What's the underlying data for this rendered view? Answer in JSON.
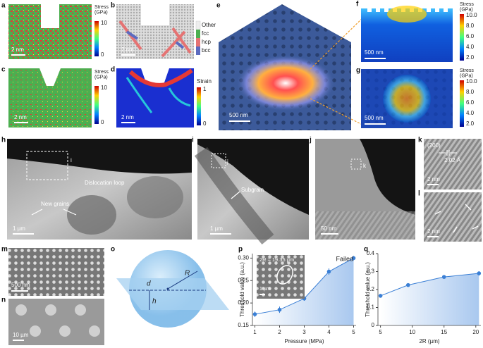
{
  "panels": {
    "a": {
      "letter": "a",
      "colorbar_title": "Stress\n(GPa)",
      "colorbar_ticks": [
        "10",
        "0"
      ],
      "scale_bar": "2 nm"
    },
    "b": {
      "letter": "b",
      "legend": [
        "Other",
        "fcc",
        "hcp",
        "bcc"
      ],
      "scale_bar": "2 nm"
    },
    "c": {
      "letter": "c",
      "colorbar_title": "Stress\n(GPa)",
      "colorbar_ticks": [
        "10",
        "0"
      ],
      "scale_bar": "2 nm"
    },
    "d": {
      "letter": "d",
      "colorbar_title": "Strain",
      "colorbar_ticks": [
        "1",
        "0"
      ],
      "scale_bar": "2 nm"
    },
    "e": {
      "letter": "e",
      "scale_bar": "500 nm"
    },
    "f": {
      "letter": "f",
      "colorbar_title": "Stress\n(GPa)",
      "colorbar_ticks": [
        "10.0",
        "8.0",
        "6.0",
        "4.0",
        "2.0"
      ],
      "scale_bar": "500 nm"
    },
    "g": {
      "letter": "g",
      "colorbar_title": "Stress\n(GPa)",
      "colorbar_ticks": [
        "10.0",
        "8.0",
        "6.0",
        "4.0",
        "2.0"
      ],
      "scale_bar": "500 nm"
    },
    "h": {
      "letter": "h",
      "box_label": "i",
      "annotations": [
        "Dislocation loop",
        "New grains"
      ],
      "scale_bar": "1 µm"
    },
    "i": {
      "letter": "i",
      "box_label": "j",
      "annotations": [
        "Subgrain"
      ],
      "scale_bar": "1 µm"
    },
    "j": {
      "letter": "j",
      "box_label": "k",
      "scale_bar": "50 nm"
    },
    "k": {
      "letter": "k",
      "annotations": [
        "(200)",
        "2.02 Å"
      ],
      "scale_bar": "2 nm"
    },
    "l": {
      "letter": "l",
      "scale_bar": "2 nm"
    },
    "m": {
      "letter": "m",
      "scale_bar": "500 nm"
    },
    "n": {
      "letter": "n",
      "scale_bar": "10 µm"
    },
    "o": {
      "letter": "o",
      "labels": [
        "R",
        "d",
        "h"
      ]
    }
  },
  "chart_data": [
    {
      "type": "line",
      "letter": "p",
      "xlabel": "Pressure (MPa)",
      "ylabel": "Threshold value (a.u.)",
      "x": [
        1,
        2,
        3,
        4,
        5
      ],
      "values": [
        0.175,
        0.185,
        0.21,
        0.27,
        0.3
      ],
      "errors": [
        0.006,
        0.007,
        0.005,
        0.007,
        0.005
      ],
      "color": "#3a7fd5",
      "xlim": [
        0.9,
        5.1
      ],
      "xticks": [
        1,
        2,
        3,
        4,
        5
      ],
      "ylim": [
        0.15,
        0.31
      ],
      "yticks": [
        0.15,
        {
          "value": 0.2,
          "label": "0.20"
        },
        0.25,
        {
          "value": 0.3,
          "label": "0.30"
        }
      ],
      "annotations": [
        "Failed"
      ],
      "inset": {
        "title": "2R ≈ 19.35 µm",
        "scale_bar": "1 µm"
      }
    },
    {
      "type": "line",
      "letter": "q",
      "xlabel": "2R (µm)",
      "ylabel": "Threshold value (a.u.)",
      "x": [
        5,
        9.35,
        15,
        20.5
      ],
      "values": [
        0.165,
        0.225,
        0.27,
        0.29
      ],
      "errors": [
        0.01,
        0.01,
        0.008,
        0.012
      ],
      "color": "#3a7fd5",
      "xlim": [
        4.6,
        20.8
      ],
      "xticks": [
        5,
        10,
        15,
        20
      ],
      "ylim": [
        0,
        0.4
      ],
      "yticks": [
        0,
        0.1,
        0.2,
        0.3,
        0.4
      ]
    }
  ]
}
